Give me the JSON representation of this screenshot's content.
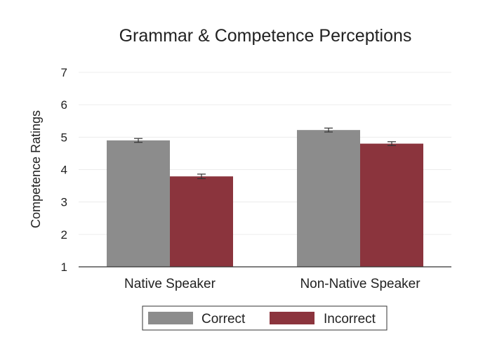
{
  "chart_data": {
    "type": "bar",
    "title": "Grammar & Competence Perceptions",
    "xlabel": "",
    "ylabel": "Competence Ratings",
    "ylim": [
      1,
      7
    ],
    "yticks": [
      1,
      2,
      3,
      4,
      5,
      6,
      7
    ],
    "categories": [
      "Native Speaker",
      "Non-Native Speaker"
    ],
    "series": [
      {
        "name": "Correct",
        "color": "#8c8c8c",
        "values": [
          4.9,
          5.22
        ],
        "errors": [
          0.06,
          0.06
        ]
      },
      {
        "name": "Incorrect",
        "color": "#8b343d",
        "values": [
          3.79,
          4.8
        ],
        "errors": [
          0.07,
          0.06
        ]
      }
    ],
    "grid": true,
    "legend": "bottom"
  }
}
